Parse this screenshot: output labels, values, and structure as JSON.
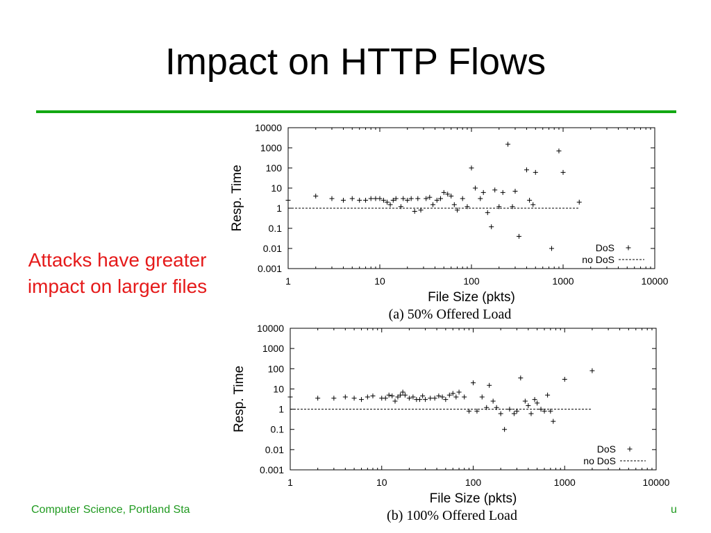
{
  "slide": {
    "title": "Impact on HTTP Flows",
    "side_text": "Attacks have greater impact on larger files",
    "footer_left": "Computer Science, Portland Sta",
    "footer_right": "u"
  },
  "colors": {
    "rule": "#12a812",
    "side_text": "#e51a1a",
    "footer": "#1f9a1f"
  },
  "chart_data": [
    {
      "type": "scatter",
      "caption": "(a) 50% Offered Load",
      "xlabel": "File Size (pkts)",
      "ylabel": "Resp. Time",
      "xscale": "log",
      "yscale": "log",
      "xlim": [
        1,
        10000
      ],
      "ylim": [
        0.001,
        10000
      ],
      "xticks": [
        "1",
        "10",
        "100",
        "1000",
        "10000"
      ],
      "yticks": [
        "10000",
        "1000",
        "100",
        "10",
        "1",
        "0.1",
        "0.01",
        "0.001"
      ],
      "legend_position": "bottom-right",
      "series": [
        {
          "name": "DoS",
          "marker": "+",
          "points": [
            [
              1,
              2.5
            ],
            [
              2,
              4
            ],
            [
              3,
              3
            ],
            [
              4,
              2.5
            ],
            [
              5,
              3
            ],
            [
              6,
              2.5
            ],
            [
              7,
              2.5
            ],
            [
              8,
              3
            ],
            [
              9,
              3
            ],
            [
              10,
              3
            ],
            [
              11,
              2.5
            ],
            [
              12,
              2
            ],
            [
              13,
              1.5
            ],
            [
              14,
              2.5
            ],
            [
              15,
              3
            ],
            [
              17,
              1.2
            ],
            [
              18,
              3
            ],
            [
              20,
              2.5
            ],
            [
              22,
              3
            ],
            [
              24,
              0.7
            ],
            [
              26,
              3
            ],
            [
              28,
              0.8
            ],
            [
              32,
              3
            ],
            [
              35,
              3.5
            ],
            [
              38,
              1.5
            ],
            [
              42,
              2.5
            ],
            [
              46,
              3
            ],
            [
              50,
              6
            ],
            [
              55,
              5
            ],
            [
              60,
              4
            ],
            [
              65,
              1.5
            ],
            [
              70,
              0.8
            ],
            [
              80,
              3
            ],
            [
              90,
              1.2
            ],
            [
              100,
              100
            ],
            [
              110,
              10
            ],
            [
              125,
              3
            ],
            [
              135,
              6
            ],
            [
              150,
              0.6
            ],
            [
              165,
              0.12
            ],
            [
              180,
              8
            ],
            [
              200,
              1.2
            ],
            [
              220,
              6
            ],
            [
              250,
              1500
            ],
            [
              280,
              1.2
            ],
            [
              300,
              7
            ],
            [
              330,
              0.04
            ],
            [
              400,
              80
            ],
            [
              430,
              2.5
            ],
            [
              470,
              1.5
            ],
            [
              500,
              60
            ],
            [
              750,
              0.01
            ],
            [
              900,
              700
            ],
            [
              1000,
              60
            ],
            [
              1500,
              2
            ]
          ]
        },
        {
          "name": "no DoS",
          "line": "dashed",
          "points": [
            [
              1,
              1
            ],
            [
              1500,
              1
            ]
          ]
        }
      ]
    },
    {
      "type": "scatter",
      "caption": "(b) 100% Offered Load",
      "xlabel": "File Size (pkts)",
      "ylabel": "Resp. Time",
      "xscale": "log",
      "yscale": "log",
      "xlim": [
        1,
        10000
      ],
      "ylim": [
        0.001,
        10000
      ],
      "xticks": [
        "1",
        "10",
        "100",
        "1000",
        "10000"
      ],
      "yticks": [
        "10000",
        "1000",
        "100",
        "10",
        "1",
        "0.1",
        "0.01",
        "0.001"
      ],
      "legend_position": "bottom-right",
      "series": [
        {
          "name": "DoS",
          "marker": "+",
          "points": [
            [
              1,
              4
            ],
            [
              2,
              3.5
            ],
            [
              3,
              3.5
            ],
            [
              4,
              4
            ],
            [
              5,
              3.5
            ],
            [
              6,
              3
            ],
            [
              7,
              4
            ],
            [
              8,
              4.5
            ],
            [
              10,
              3.5
            ],
            [
              11,
              3.5
            ],
            [
              12,
              5
            ],
            [
              13,
              4.5
            ],
            [
              14,
              2.5
            ],
            [
              15,
              4
            ],
            [
              16,
              5
            ],
            [
              17,
              7
            ],
            [
              18,
              5
            ],
            [
              20,
              3.5
            ],
            [
              22,
              4
            ],
            [
              24,
              3
            ],
            [
              26,
              3
            ],
            [
              28,
              4.5
            ],
            [
              30,
              3
            ],
            [
              34,
              3.5
            ],
            [
              38,
              3.5
            ],
            [
              42,
              4.5
            ],
            [
              46,
              4
            ],
            [
              50,
              3
            ],
            [
              55,
              5
            ],
            [
              60,
              6
            ],
            [
              65,
              4
            ],
            [
              70,
              7
            ],
            [
              80,
              4
            ],
            [
              90,
              0.8
            ],
            [
              100,
              20
            ],
            [
              110,
              0.8
            ],
            [
              125,
              4
            ],
            [
              140,
              1.2
            ],
            [
              150,
              15
            ],
            [
              165,
              2.5
            ],
            [
              180,
              1.2
            ],
            [
              200,
              0.6
            ],
            [
              220,
              0.1
            ],
            [
              250,
              1
            ],
            [
              280,
              0.6
            ],
            [
              300,
              0.8
            ],
            [
              330,
              35
            ],
            [
              370,
              2.5
            ],
            [
              400,
              1.5
            ],
            [
              430,
              0.6
            ],
            [
              470,
              3
            ],
            [
              500,
              2
            ],
            [
              550,
              1
            ],
            [
              600,
              0.8
            ],
            [
              650,
              5
            ],
            [
              700,
              0.8
            ],
            [
              750,
              0.25
            ],
            [
              1000,
              30
            ],
            [
              2000,
              80
            ]
          ]
        },
        {
          "name": "no DoS",
          "line": "dashed",
          "points": [
            [
              1,
              1
            ],
            [
              2000,
              1
            ]
          ]
        }
      ]
    }
  ]
}
